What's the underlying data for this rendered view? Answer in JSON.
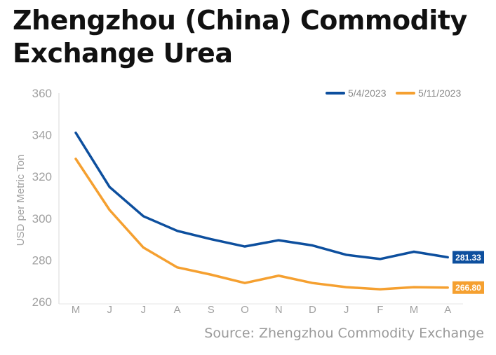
{
  "title_line1": "Zhengzhou (China) Commodity",
  "title_line2": "Exchange Urea",
  "source": "Source: Zhengzhou Commodity Exchange",
  "chart_data": {
    "type": "line",
    "categories": [
      "M",
      "J",
      "J",
      "A",
      "S",
      "O",
      "N",
      "D",
      "J",
      "F",
      "M",
      "A"
    ],
    "ylabel": "USD per Metric Ton",
    "ylim": [
      260,
      360
    ],
    "yticks": [
      "360",
      "340",
      "320",
      "300",
      "280",
      "260"
    ],
    "grid": false,
    "legend": "top-right",
    "series": [
      {
        "name": "5/4/2023",
        "color": "#0d4f9e",
        "values": [
          341,
          315,
          301,
          294,
          290,
          286.5,
          289.5,
          287,
          282.5,
          280.5,
          284,
          281.33
        ],
        "end_label": "281.33"
      },
      {
        "name": "5/11/2023",
        "color": "#f5a030",
        "values": [
          328.5,
          304,
          286,
          276.5,
          273,
          269,
          272.5,
          269,
          267,
          266,
          267,
          266.8
        ],
        "end_label": "266.80"
      }
    ]
  }
}
